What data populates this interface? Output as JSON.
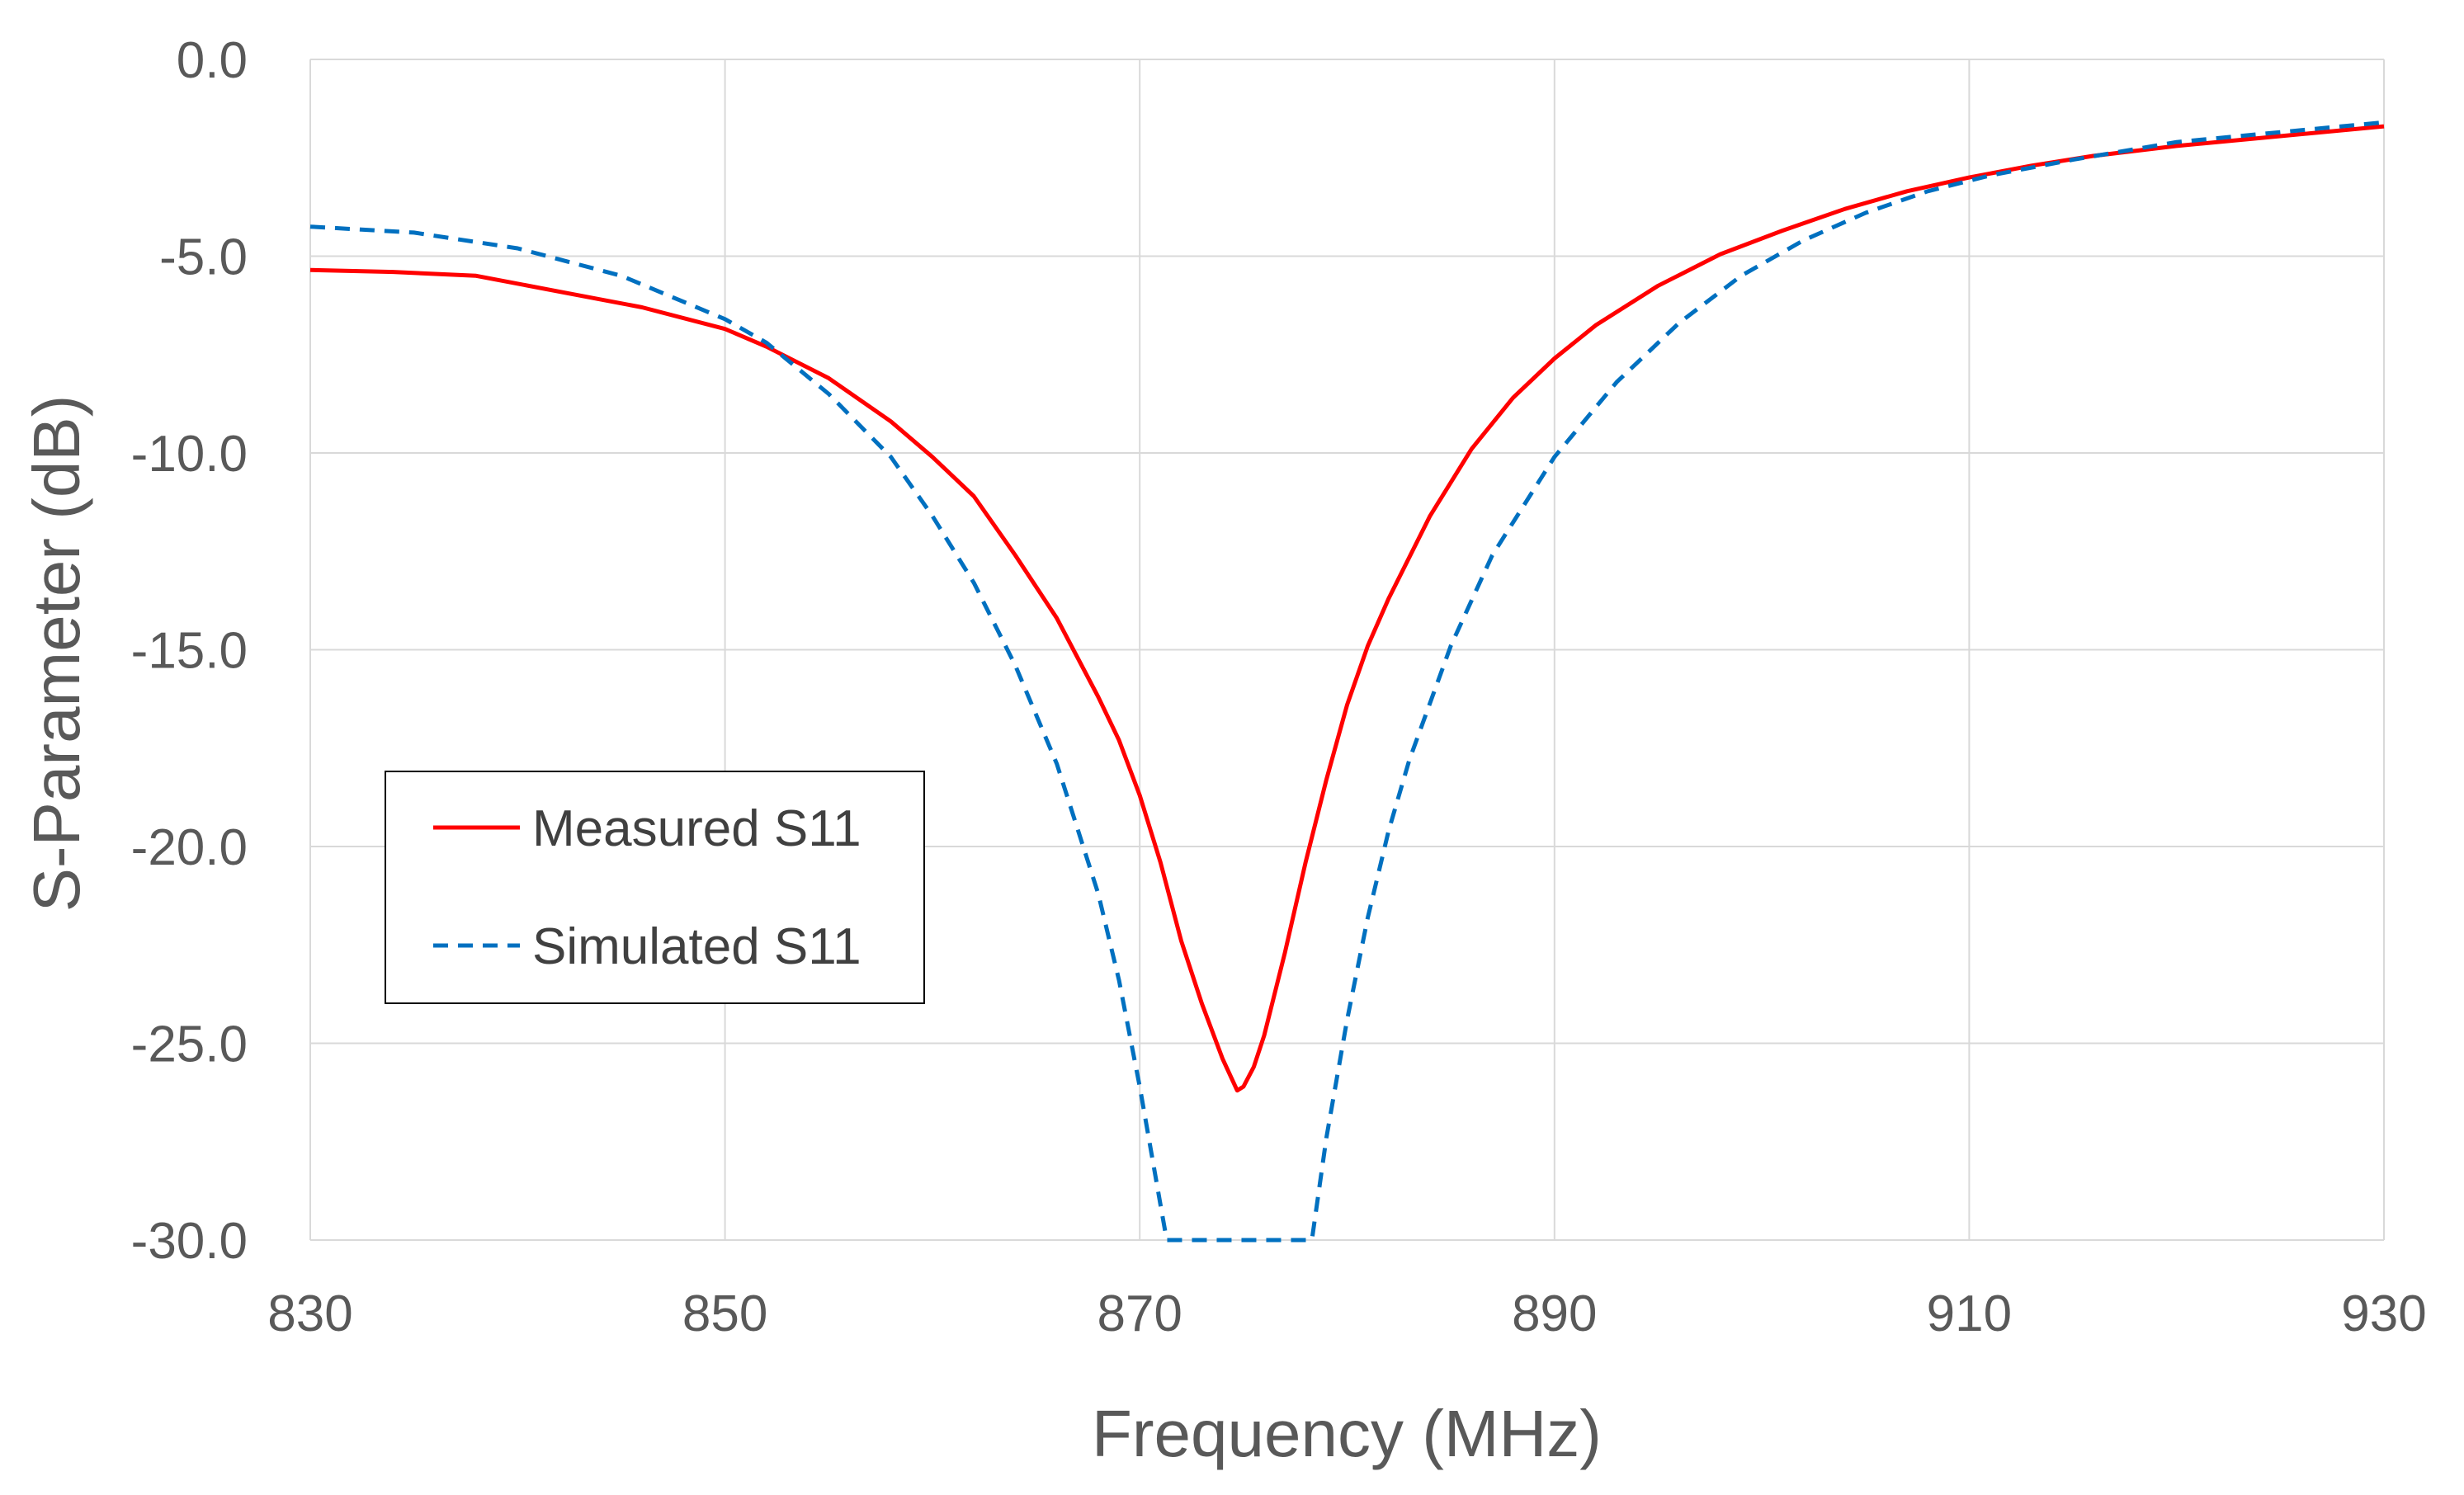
{
  "chart_data": {
    "type": "line",
    "title": "",
    "xlabel": "Frequency (MHz)",
    "ylabel": "S-Parameter (dB)",
    "xlim": [
      830,
      930
    ],
    "ylim": [
      -30,
      0
    ],
    "xticks": [
      830,
      850,
      870,
      890,
      910,
      930
    ],
    "yticks": [
      0,
      -5,
      -10,
      -15,
      -20,
      -25,
      -30
    ],
    "grid": true,
    "legend_position": "left-middle",
    "series": [
      {
        "name": "Measured S11",
        "color": "#ff0000",
        "style": "solid",
        "x": [
          830,
          834,
          838,
          842,
          846,
          850,
          852,
          855,
          858,
          860,
          862,
          864,
          866,
          868,
          869,
          870,
          871,
          872,
          873,
          874,
          874.7,
          875,
          875.5,
          876,
          877,
          878,
          879,
          880,
          881,
          882,
          884,
          886,
          888,
          890,
          892,
          895,
          898,
          901,
          904,
          907,
          910,
          913,
          916,
          920,
          925,
          930
        ],
        "y": [
          -5.35,
          -5.4,
          -5.5,
          -5.9,
          -6.3,
          -6.85,
          -7.3,
          -8.1,
          -9.2,
          -10.1,
          -11.1,
          -12.6,
          -14.2,
          -16.2,
          -17.3,
          -18.7,
          -20.4,
          -22.4,
          -24.0,
          -25.4,
          -26.2,
          -26.1,
          -25.6,
          -24.8,
          -22.7,
          -20.4,
          -18.3,
          -16.4,
          -14.9,
          -13.7,
          -11.6,
          -9.9,
          -8.6,
          -7.6,
          -6.75,
          -5.75,
          -4.95,
          -4.35,
          -3.8,
          -3.35,
          -3.0,
          -2.7,
          -2.45,
          -2.2,
          -1.95,
          -1.7
        ]
      },
      {
        "name": "Simulated S11",
        "color": "#0070c0",
        "style": "dashed",
        "x": [
          830,
          835,
          840,
          845,
          850,
          852,
          855,
          858,
          860,
          862,
          864,
          866,
          868,
          869,
          870,
          871,
          871.3,
          878.3,
          879,
          880,
          881,
          882,
          883,
          885,
          887,
          890,
          893,
          896,
          899,
          902,
          905,
          908,
          911,
          915,
          920,
          925,
          930
        ],
        "y": [
          -4.25,
          -4.4,
          -4.8,
          -5.5,
          -6.6,
          -7.2,
          -8.5,
          -10.1,
          -11.6,
          -13.3,
          -15.4,
          -17.9,
          -21.2,
          -23.4,
          -26.1,
          -29.1,
          -30.0,
          -30.0,
          -27.4,
          -24.4,
          -21.8,
          -19.6,
          -17.8,
          -14.9,
          -12.6,
          -10.1,
          -8.2,
          -6.7,
          -5.5,
          -4.6,
          -3.9,
          -3.35,
          -2.95,
          -2.55,
          -2.1,
          -1.85,
          -1.6
        ]
      }
    ]
  }
}
